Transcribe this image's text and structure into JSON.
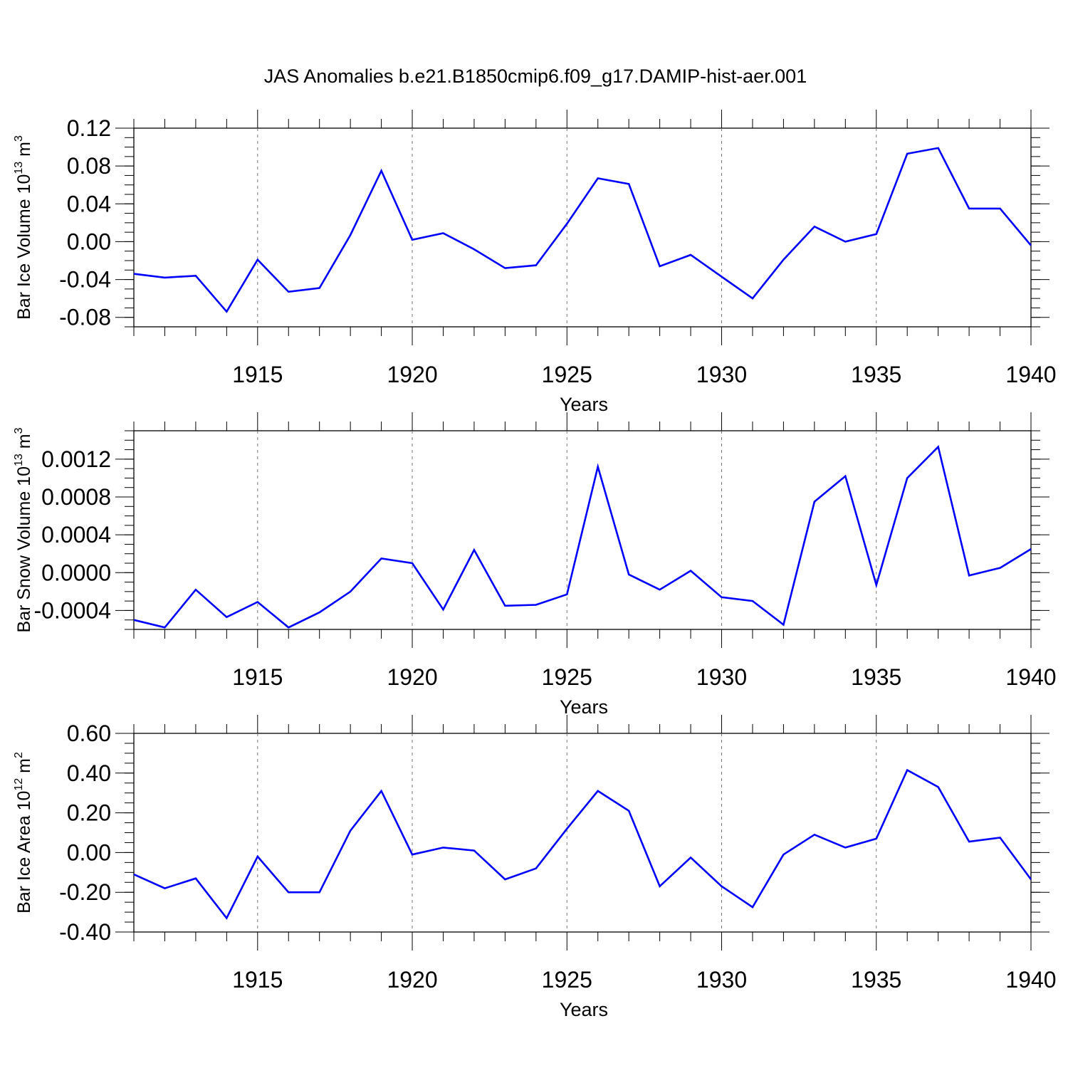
{
  "chart_data": {
    "title": "JAS Anomalies b.e21.B1850cmip6.f09_g17.DAMIP-hist-aer.001",
    "series_color": "#0000ff",
    "panels": [
      {
        "type": "line",
        "ylabel": "Bar Ice Volume 10",
        "ylabel_exp": "13",
        "ylabel_unit": " m",
        "ylabel_unit_exp": "3",
        "xlabel": "Years",
        "xlim": [
          1911,
          1940
        ],
        "ylim": [
          -0.09,
          0.12
        ],
        "yticks": [
          -0.08,
          -0.04,
          0.0,
          0.04,
          0.08,
          0.12
        ],
        "ytick_labels": [
          "-0.08",
          "-0.04",
          "0.00",
          "0.04",
          "0.08",
          "0.12"
        ],
        "xticks": [
          1915,
          1920,
          1925,
          1930,
          1935,
          1940
        ],
        "xtick_labels": [
          "1915",
          "1920",
          "1925",
          "1930",
          "1935",
          "1940"
        ],
        "x": [
          1911,
          1912,
          1913,
          1914,
          1915,
          1916,
          1917,
          1918,
          1919,
          1920,
          1921,
          1922,
          1923,
          1924,
          1925,
          1926,
          1927,
          1928,
          1929,
          1930,
          1931,
          1932,
          1933,
          1934,
          1935,
          1936,
          1937,
          1938,
          1939,
          1940
        ],
        "y": [
          -0.034,
          -0.038,
          -0.036,
          -0.074,
          -0.019,
          -0.053,
          -0.049,
          0.007,
          0.075,
          0.002,
          0.009,
          -0.008,
          -0.028,
          -0.025,
          0.019,
          0.067,
          0.061,
          -0.026,
          -0.014,
          -0.037,
          -0.06,
          -0.019,
          0.016,
          0.0,
          0.008,
          0.093,
          0.099,
          0.035,
          0.035,
          -0.004
        ]
      },
      {
        "type": "line",
        "ylabel": "Bar Snow Volume 10",
        "ylabel_exp": "13",
        "ylabel_unit": " m",
        "ylabel_unit_exp": "3",
        "xlabel": "Years",
        "xlim": [
          1911,
          1940
        ],
        "ylim": [
          -0.0006,
          0.0015
        ],
        "yticks": [
          -0.0004,
          0.0,
          0.0004,
          0.0008,
          0.0012
        ],
        "ytick_labels": [
          "-0.0004",
          "0.0000",
          "0.0004",
          "0.0008",
          "0.0012"
        ],
        "xticks": [
          1915,
          1920,
          1925,
          1930,
          1935,
          1940
        ],
        "xtick_labels": [
          "1915",
          "1920",
          "1925",
          "1930",
          "1935",
          "1940"
        ],
        "x": [
          1911,
          1912,
          1913,
          1914,
          1915,
          1916,
          1917,
          1918,
          1919,
          1920,
          1921,
          1922,
          1923,
          1924,
          1925,
          1926,
          1927,
          1928,
          1929,
          1930,
          1931,
          1932,
          1933,
          1934,
          1935,
          1936,
          1937,
          1938,
          1939,
          1940
        ],
        "y": [
          -0.0005,
          -0.00058,
          -0.00018,
          -0.00047,
          -0.00031,
          -0.00058,
          -0.00042,
          -0.0002,
          0.00015,
          0.0001,
          -0.00039,
          0.00024,
          -0.00035,
          -0.00034,
          -0.00023,
          0.00112,
          -2e-05,
          -0.00018,
          2e-05,
          -0.00026,
          -0.0003,
          -0.00055,
          0.00075,
          0.00102,
          -0.00013,
          0.001,
          0.00133,
          -3e-05,
          5e-05,
          0.00025
        ]
      },
      {
        "type": "line",
        "ylabel": "Bar Ice Area 10",
        "ylabel_exp": "12",
        "ylabel_unit": " m",
        "ylabel_unit_exp": "2",
        "xlabel": "Years",
        "xlim": [
          1911,
          1940
        ],
        "ylim": [
          -0.4,
          0.6
        ],
        "yticks": [
          -0.4,
          -0.2,
          0.0,
          0.2,
          0.4,
          0.6
        ],
        "ytick_labels": [
          "-0.40",
          "-0.20",
          "0.00",
          "0.20",
          "0.40",
          "0.60"
        ],
        "xticks": [
          1915,
          1920,
          1925,
          1930,
          1935,
          1940
        ],
        "xtick_labels": [
          "1915",
          "1920",
          "1925",
          "1930",
          "1935",
          "1940"
        ],
        "x": [
          1911,
          1912,
          1913,
          1914,
          1915,
          1916,
          1917,
          1918,
          1919,
          1920,
          1921,
          1922,
          1923,
          1924,
          1925,
          1926,
          1927,
          1928,
          1929,
          1930,
          1931,
          1932,
          1933,
          1934,
          1935,
          1936,
          1937,
          1938,
          1939,
          1940
        ],
        "y": [
          -0.11,
          -0.18,
          -0.13,
          -0.33,
          -0.02,
          -0.2,
          -0.2,
          0.11,
          0.31,
          -0.01,
          0.025,
          0.01,
          -0.135,
          -0.08,
          0.12,
          0.31,
          0.21,
          -0.17,
          -0.025,
          -0.17,
          -0.275,
          -0.01,
          0.09,
          0.025,
          0.07,
          0.415,
          0.33,
          0.055,
          0.075,
          -0.135
        ]
      }
    ]
  }
}
